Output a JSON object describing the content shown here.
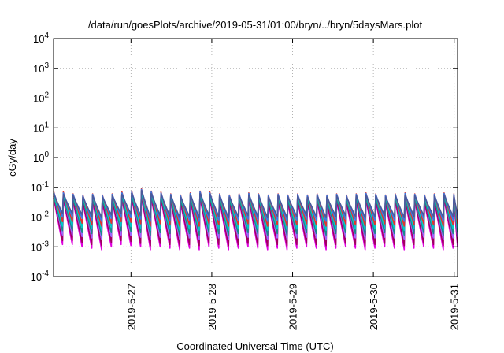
{
  "chart_data": {
    "type": "line",
    "title": "/data/run/goesPlots/archive/2019-05-31/01:00/bryn/../bryn/5daysMars.plot",
    "xlabel": "Coordinated Universal Time (UTC)",
    "ylabel": "cGy/day",
    "x_range": [
      "2019-05-26 01:00",
      "2019-05-31 01:00"
    ],
    "ylim": [
      0.0001,
      10000
    ],
    "y_scale": "log",
    "grid": true,
    "legend": "none",
    "x_ticks": [
      {
        "value": "2019-05-27 00:00",
        "label": "2019-5-27"
      },
      {
        "value": "2019-05-28 00:00",
        "label": "2019-5-28"
      },
      {
        "value": "2019-05-29 00:00",
        "label": "2019-5-29"
      },
      {
        "value": "2019-05-30 00:00",
        "label": "2019-5-30"
      },
      {
        "value": "2019-05-31 00:00",
        "label": "2019-5-31"
      }
    ],
    "y_ticks": [
      {
        "value": 0.0001,
        "base": "10",
        "exp": "-4"
      },
      {
        "value": 0.001,
        "base": "10",
        "exp": "-3"
      },
      {
        "value": 0.01,
        "base": "10",
        "exp": "-2"
      },
      {
        "value": 0.1,
        "base": "10",
        "exp": "-1"
      },
      {
        "value": 1,
        "base": "10",
        "exp": "0"
      },
      {
        "value": 10,
        "base": "10",
        "exp": "1"
      },
      {
        "value": 100,
        "base": "10",
        "exp": "2"
      },
      {
        "value": 1000,
        "base": "10",
        "exp": "3"
      },
      {
        "value": 10000,
        "base": "10",
        "exp": "4"
      }
    ],
    "cycle_start": "2019-05-26 01:00",
    "cycle_hours": 2.9,
    "series": [
      {
        "color": "#e000e0",
        "peaks": [
          0.045,
          0.04,
          0.035,
          0.03,
          0.035,
          0.03,
          0.035,
          0.04,
          0.045,
          0.05,
          0.045,
          0.04,
          0.035,
          0.03,
          0.04,
          0.045,
          0.04,
          0.035,
          0.03,
          0.035,
          0.04,
          0.035,
          0.03,
          0.035,
          0.03,
          0.035,
          0.03,
          0.035,
          0.03,
          0.035,
          0.03,
          0.035,
          0.04,
          0.035,
          0.03,
          0.035,
          0.04,
          0.035,
          0.03,
          0.035,
          0.04,
          0.035
        ],
        "troughs": [
          0.0012,
          0.0012,
          0.001,
          0.0009,
          0.0008,
          0.001,
          0.0012,
          0.0011,
          0.001,
          0.0008,
          0.001,
          0.0009,
          0.0008,
          0.0009,
          0.0008,
          0.001,
          0.0009,
          0.0008,
          0.0009,
          0.001,
          0.0009,
          0.0008,
          0.0009,
          0.0008,
          0.0009,
          0.001,
          0.0009,
          0.0008,
          0.0009,
          0.001,
          0.0009,
          0.0008,
          0.0009,
          0.001,
          0.0009,
          0.0008,
          0.0009,
          0.001,
          0.0009,
          0.0008,
          0.0009,
          0.001
        ]
      },
      {
        "color": "#a00060",
        "peaks": [
          0.05,
          0.045,
          0.04,
          0.035,
          0.04,
          0.035,
          0.04,
          0.045,
          0.05,
          0.055,
          0.05,
          0.045,
          0.04,
          0.035,
          0.045,
          0.05,
          0.045,
          0.04,
          0.035,
          0.04,
          0.045,
          0.04,
          0.035,
          0.04,
          0.035,
          0.04,
          0.035,
          0.04,
          0.035,
          0.04,
          0.035,
          0.04,
          0.045,
          0.04,
          0.035,
          0.04,
          0.045,
          0.04,
          0.035,
          0.04,
          0.045,
          0.04
        ],
        "troughs": [
          0.0016,
          0.0016,
          0.0014,
          0.0012,
          0.0011,
          0.0014,
          0.0016,
          0.0015,
          0.0013,
          0.0011,
          0.0013,
          0.0012,
          0.0011,
          0.0012,
          0.0011,
          0.0013,
          0.0012,
          0.0011,
          0.0012,
          0.0013,
          0.0012,
          0.0011,
          0.0012,
          0.0011,
          0.0012,
          0.0013,
          0.0012,
          0.0011,
          0.0012,
          0.0013,
          0.0012,
          0.0011,
          0.0012,
          0.0013,
          0.0012,
          0.0011,
          0.0012,
          0.0013,
          0.0012,
          0.0011,
          0.0012,
          0.0013
        ]
      },
      {
        "color": "#9966ff",
        "peaks": [
          0.06,
          0.055,
          0.05,
          0.045,
          0.05,
          0.045,
          0.05,
          0.055,
          0.06,
          0.07,
          0.06,
          0.055,
          0.05,
          0.045,
          0.055,
          0.06,
          0.055,
          0.05,
          0.045,
          0.05,
          0.055,
          0.05,
          0.045,
          0.05,
          0.045,
          0.05,
          0.045,
          0.05,
          0.045,
          0.05,
          0.045,
          0.05,
          0.055,
          0.05,
          0.045,
          0.05,
          0.055,
          0.05,
          0.045,
          0.05,
          0.055,
          0.05
        ],
        "troughs": [
          0.0025,
          0.0025,
          0.0022,
          0.002,
          0.0018,
          0.0022,
          0.0025,
          0.0024,
          0.0021,
          0.0018,
          0.0021,
          0.002,
          0.0018,
          0.002,
          0.0018,
          0.0021,
          0.002,
          0.0018,
          0.002,
          0.0021,
          0.002,
          0.0018,
          0.002,
          0.0018,
          0.002,
          0.0021,
          0.002,
          0.0018,
          0.002,
          0.0021,
          0.002,
          0.0018,
          0.002,
          0.0021,
          0.002,
          0.0018,
          0.002,
          0.0021,
          0.002,
          0.0018,
          0.002,
          0.0021
        ]
      },
      {
        "color": "#1a8a8a",
        "peaks": [
          0.055,
          0.05,
          0.045,
          0.04,
          0.045,
          0.04,
          0.045,
          0.05,
          0.055,
          0.065,
          0.055,
          0.05,
          0.045,
          0.04,
          0.05,
          0.055,
          0.05,
          0.045,
          0.04,
          0.045,
          0.05,
          0.045,
          0.04,
          0.045,
          0.04,
          0.045,
          0.04,
          0.045,
          0.04,
          0.045,
          0.04,
          0.045,
          0.05,
          0.045,
          0.04,
          0.045,
          0.05,
          0.045,
          0.04,
          0.045,
          0.05,
          0.045
        ],
        "troughs": [
          0.0035,
          0.0035,
          0.003,
          0.0028,
          0.0025,
          0.003,
          0.0035,
          0.0033,
          0.003,
          0.0025,
          0.003,
          0.0028,
          0.0025,
          0.0028,
          0.0025,
          0.003,
          0.0028,
          0.0025,
          0.0028,
          0.003,
          0.0028,
          0.0025,
          0.0028,
          0.0025,
          0.0028,
          0.003,
          0.0028,
          0.0025,
          0.0028,
          0.003,
          0.0028,
          0.0025,
          0.0028,
          0.003,
          0.0028,
          0.0025,
          0.0028,
          0.003,
          0.0028,
          0.0025,
          0.0028,
          0.003
        ]
      },
      {
        "color": "#00c8c8",
        "peaks": [
          0.065,
          0.06,
          0.055,
          0.05,
          0.055,
          0.05,
          0.055,
          0.06,
          0.065,
          0.075,
          0.065,
          0.06,
          0.055,
          0.05,
          0.06,
          0.065,
          0.06,
          0.055,
          0.05,
          0.055,
          0.06,
          0.055,
          0.05,
          0.055,
          0.05,
          0.055,
          0.05,
          0.055,
          0.05,
          0.055,
          0.05,
          0.055,
          0.06,
          0.055,
          0.05,
          0.055,
          0.06,
          0.055,
          0.05,
          0.055,
          0.06,
          0.055
        ],
        "troughs": [
          0.005,
          0.005,
          0.0045,
          0.004,
          0.0036,
          0.0045,
          0.005,
          0.0048,
          0.0043,
          0.0036,
          0.0043,
          0.004,
          0.0036,
          0.004,
          0.0036,
          0.0043,
          0.004,
          0.0036,
          0.004,
          0.0043,
          0.004,
          0.0036,
          0.004,
          0.0036,
          0.004,
          0.0043,
          0.004,
          0.0036,
          0.004,
          0.0043,
          0.004,
          0.0036,
          0.004,
          0.0043,
          0.004,
          0.0036,
          0.004,
          0.0043,
          0.004,
          0.0036,
          0.004,
          0.0043
        ]
      },
      {
        "color": "#e0342e",
        "peaks": [
          0.075,
          0.07,
          0.06,
          0.055,
          0.06,
          0.055,
          0.06,
          0.07,
          0.075,
          0.09,
          0.075,
          0.07,
          0.06,
          0.055,
          0.065,
          0.075,
          0.07,
          0.06,
          0.055,
          0.06,
          0.065,
          0.06,
          0.055,
          0.06,
          0.055,
          0.06,
          0.055,
          0.06,
          0.055,
          0.06,
          0.055,
          0.06,
          0.065,
          0.06,
          0.055,
          0.06,
          0.065,
          0.06,
          0.055,
          0.06,
          0.065,
          0.06
        ],
        "troughs": [
          0.007,
          0.007,
          0.0062,
          0.0055,
          0.005,
          0.0062,
          0.007,
          0.0067,
          0.006,
          0.005,
          0.006,
          0.0055,
          0.005,
          0.0055,
          0.005,
          0.006,
          0.0055,
          0.005,
          0.0055,
          0.006,
          0.0055,
          0.005,
          0.0055,
          0.005,
          0.0055,
          0.006,
          0.0055,
          0.005,
          0.0055,
          0.006,
          0.0055,
          0.005,
          0.0055,
          0.006,
          0.0055,
          0.005,
          0.0055,
          0.006,
          0.0055,
          0.005,
          0.0055,
          0.006
        ]
      },
      {
        "color": "#3a78e6",
        "peaks": [
          0.07,
          0.065,
          0.058,
          0.052,
          0.058,
          0.052,
          0.058,
          0.065,
          0.07,
          0.085,
          0.07,
          0.065,
          0.058,
          0.052,
          0.062,
          0.07,
          0.065,
          0.058,
          0.052,
          0.058,
          0.062,
          0.058,
          0.052,
          0.058,
          0.052,
          0.058,
          0.052,
          0.058,
          0.052,
          0.058,
          0.052,
          0.058,
          0.062,
          0.058,
          0.052,
          0.058,
          0.062,
          0.058,
          0.052,
          0.058,
          0.062,
          0.058
        ],
        "troughs": [
          0.01,
          0.01,
          0.009,
          0.008,
          0.0072,
          0.009,
          0.01,
          0.0096,
          0.0086,
          0.0072,
          0.0086,
          0.008,
          0.0072,
          0.008,
          0.0072,
          0.0086,
          0.008,
          0.0072,
          0.008,
          0.0086,
          0.008,
          0.0072,
          0.008,
          0.0072,
          0.008,
          0.0086,
          0.008,
          0.0072,
          0.008,
          0.0086,
          0.008,
          0.0072,
          0.008,
          0.0086,
          0.008,
          0.0072,
          0.008,
          0.0086,
          0.008,
          0.0072,
          0.008,
          0.0086
        ]
      },
      {
        "color": "#4a5a9a",
        "peaks": [
          0.062,
          0.058,
          0.052,
          0.047,
          0.052,
          0.047,
          0.052,
          0.058,
          0.062,
          0.078,
          0.062,
          0.058,
          0.052,
          0.047,
          0.056,
          0.062,
          0.058,
          0.052,
          0.047,
          0.052,
          0.056,
          0.052,
          0.047,
          0.052,
          0.047,
          0.052,
          0.047,
          0.052,
          0.047,
          0.052,
          0.047,
          0.052,
          0.056,
          0.052,
          0.047,
          0.052,
          0.056,
          0.052,
          0.047,
          0.052,
          0.056,
          0.052
        ],
        "troughs": [
          0.013,
          0.013,
          0.0118,
          0.0105,
          0.0095,
          0.0118,
          0.013,
          0.0125,
          0.0112,
          0.0095,
          0.0112,
          0.0105,
          0.0095,
          0.0105,
          0.0095,
          0.0112,
          0.0105,
          0.0095,
          0.0105,
          0.0112,
          0.0105,
          0.0095,
          0.0105,
          0.0095,
          0.0105,
          0.0112,
          0.0105,
          0.0095,
          0.0105,
          0.0112,
          0.0105,
          0.0095,
          0.0105,
          0.0112,
          0.0105,
          0.0095,
          0.0105,
          0.0112,
          0.0105,
          0.0095,
          0.0105,
          0.0112
        ]
      }
    ]
  }
}
